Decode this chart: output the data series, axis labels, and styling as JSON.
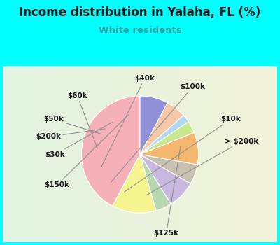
{
  "title": "Income distribution in Yalaha, FL (%)",
  "subtitle": "White residents",
  "title_color": "#1a1a1a",
  "subtitle_color": "#30a0a0",
  "background_outer": "#00ffff",
  "background_inner_top": "#e0f5f5",
  "background_inner_bottom": "#e8f0d8",
  "labels": [
    "$125k",
    "> $200k",
    "$10k",
    "$100k",
    "$40k",
    "$60k",
    "$50k",
    "$200k",
    "$30k",
    "$150k"
  ],
  "values": [
    38,
    11,
    4,
    7,
    5,
    8,
    3,
    2,
    5,
    7
  ],
  "colors": [
    "#f5b0b8",
    "#f5f590",
    "#b8d8b0",
    "#c8b8e0",
    "#c8c0b0",
    "#f5b870",
    "#c8e890",
    "#b0d8f0",
    "#f5c8a8",
    "#9090d8"
  ],
  "startangle": 90,
  "label_fontsize": 7.5,
  "figsize": [
    4.0,
    3.5
  ],
  "dpi": 100
}
